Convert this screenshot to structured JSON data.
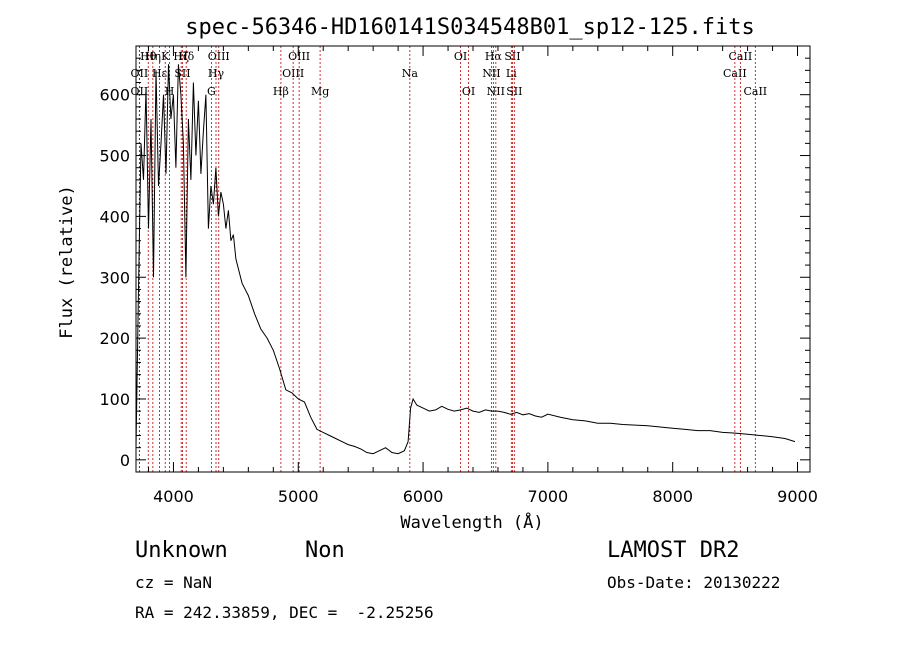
{
  "chart_data": {
    "type": "line",
    "title": "spec-56346-HD160141S034548B01_sp12-125.fits",
    "xlabel": "Wavelength (Å)",
    "ylabel": "Flux (relative)",
    "xlim": [
      3700,
      9100
    ],
    "ylim": [
      -20,
      680
    ],
    "xticks": [
      4000,
      5000,
      6000,
      7000,
      8000,
      9000
    ],
    "yticks": [
      0,
      100,
      200,
      300,
      400,
      500,
      600
    ],
    "grid": false,
    "series": [
      {
        "x": [
          3700,
          3720,
          3740,
          3760,
          3780,
          3800,
          3820,
          3840,
          3860,
          3880,
          3900,
          3920,
          3940,
          3960,
          3980,
          4000,
          4020,
          4040,
          4060,
          4080,
          4100,
          4120,
          4140,
          4160,
          4180,
          4200,
          4220,
          4240,
          4260,
          4280,
          4300,
          4320,
          4340,
          4360,
          4380,
          4400,
          4420,
          4440,
          4460,
          4480,
          4500,
          4550,
          4600,
          4650,
          4700,
          4750,
          4800,
          4850,
          4900,
          4950,
          5000,
          5050,
          5100,
          5150,
          5200,
          5250,
          5300,
          5350,
          5400,
          5450,
          5500,
          5550,
          5600,
          5650,
          5700,
          5750,
          5800,
          5850,
          5880,
          5900,
          5920,
          5950,
          6000,
          6050,
          6100,
          6150,
          6200,
          6250,
          6300,
          6350,
          6400,
          6450,
          6500,
          6550,
          6600,
          6650,
          6700,
          6750,
          6800,
          6850,
          6900,
          6950,
          7000,
          7100,
          7200,
          7300,
          7400,
          7500,
          7600,
          7700,
          7800,
          7900,
          8000,
          8100,
          8200,
          8300,
          8400,
          8500,
          8600,
          8700,
          8800,
          8900,
          8980
        ],
        "y": [
          20,
          280,
          520,
          460,
          610,
          380,
          560,
          300,
          640,
          450,
          520,
          600,
          470,
          650,
          560,
          600,
          480,
          650,
          600,
          520,
          300,
          560,
          460,
          620,
          500,
          590,
          470,
          540,
          600,
          380,
          450,
          420,
          480,
          400,
          440,
          420,
          380,
          410,
          360,
          370,
          330,
          290,
          270,
          240,
          215,
          200,
          180,
          150,
          115,
          110,
          100,
          95,
          70,
          50,
          45,
          40,
          35,
          30,
          25,
          22,
          18,
          12,
          10,
          15,
          20,
          12,
          10,
          15,
          30,
          85,
          100,
          90,
          85,
          80,
          82,
          88,
          83,
          80,
          82,
          85,
          80,
          78,
          82,
          80,
          80,
          78,
          75,
          78,
          74,
          76,
          72,
          70,
          75,
          70,
          66,
          64,
          60,
          60,
          58,
          57,
          56,
          54,
          52,
          50,
          48,
          48,
          45,
          44,
          42,
          40,
          38,
          35,
          30
        ]
      }
    ],
    "line_markers": [
      {
        "label": "Hθ",
        "x": 3798,
        "row": 0
      },
      {
        "label": "OII",
        "x": 3727,
        "row": 1
      },
      {
        "label": "OII",
        "x": 3727,
        "row": 2
      },
      {
        "label": "Hη",
        "x": 3835,
        "row": 0
      },
      {
        "label": "Hε",
        "x": 3889,
        "row": 1
      },
      {
        "label": "K",
        "x": 3934,
        "row": 0
      },
      {
        "label": "H",
        "x": 3969,
        "row": 2
      },
      {
        "label": "Hδ",
        "x": 4102,
        "row": 0
      },
      {
        "label": "SII",
        "x": 4072,
        "row": 1
      },
      {
        "label": "Hζ",
        "x": 4062,
        "row": 0
      },
      {
        "label": "OIII",
        "x": 4363,
        "row": 0
      },
      {
        "label": "Hγ",
        "x": 4341,
        "row": 1
      },
      {
        "label": "G",
        "x": 4304,
        "row": 2
      },
      {
        "label": "Hβ",
        "x": 4861,
        "row": 2
      },
      {
        "label": "OIII",
        "x": 4959,
        "row": 1
      },
      {
        "label": "OIII",
        "x": 5007,
        "row": 0
      },
      {
        "label": "Mg",
        "x": 5175,
        "row": 2
      },
      {
        "label": "Na",
        "x": 5894,
        "row": 1
      },
      {
        "label": "OI",
        "x": 6300,
        "row": 0
      },
      {
        "label": "OI",
        "x": 6364,
        "row": 2
      },
      {
        "label": "Hα",
        "x": 6563,
        "row": 0
      },
      {
        "label": "NII",
        "x": 6548,
        "row": 1
      },
      {
        "label": "NII",
        "x": 6583,
        "row": 2
      },
      {
        "label": "SII",
        "x": 6716,
        "row": 0
      },
      {
        "label": "Li",
        "x": 6707,
        "row": 1
      },
      {
        "label": "SII",
        "x": 6731,
        "row": 2
      },
      {
        "label": "CaII",
        "x": 8542,
        "row": 0
      },
      {
        "label": "CaII",
        "x": 8498,
        "row": 1
      },
      {
        "label": "CaII",
        "x": 8662,
        "row": 2
      }
    ]
  },
  "info": {
    "object_type": "Unknown",
    "object_subtype": "Non",
    "survey": "LAMOST DR2",
    "cz": "cz = NaN",
    "obs_date": "Obs-Date: 20130222",
    "coords": "RA = 242.33859, DEC =  -2.25256"
  }
}
